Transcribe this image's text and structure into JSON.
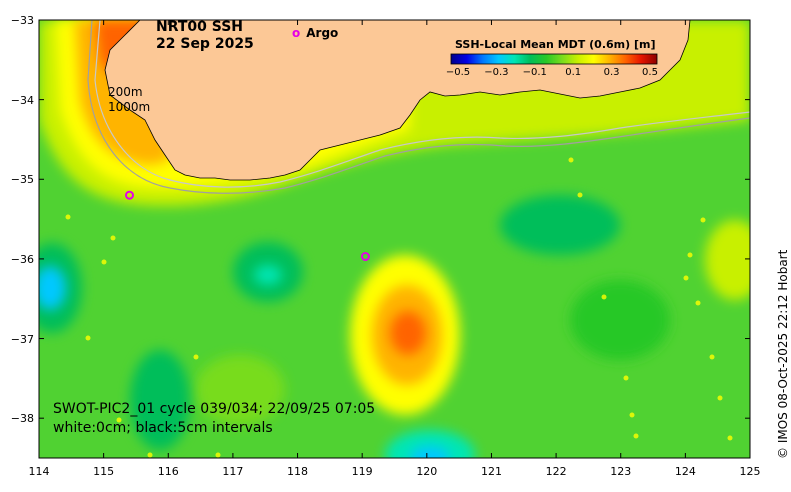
{
  "title": {
    "line1": "NRT00 SSH",
    "line2": "22 Sep 2025"
  },
  "legend": {
    "argo_symbol": "o",
    "argo_label": "Argo"
  },
  "isobaths": {
    "shallow": "200m",
    "deep": "1000m"
  },
  "colorbar": {
    "title": "SSH-Local Mean MDT (0.6m) [m]",
    "ticks": [
      "−0.5",
      "−0.3",
      "−0.1",
      "0.1",
      "0.3",
      "0.5"
    ],
    "values": [
      -0.5,
      -0.3,
      -0.1,
      0.1,
      0.3,
      0.5
    ],
    "colors": [
      "#00008c",
      "#0000e6",
      "#0078ff",
      "#00c8ff",
      "#00e6b4",
      "#00be5a",
      "#28c828",
      "#78dc1e",
      "#c8f000",
      "#ffff00",
      "#ffb400",
      "#ff6400",
      "#e61400",
      "#8c0000"
    ]
  },
  "axes": {
    "x_ticks": [
      "114",
      "115",
      "116",
      "117",
      "118",
      "119",
      "120",
      "121",
      "122",
      "123",
      "124",
      "125"
    ],
    "x_values": [
      114,
      115,
      116,
      117,
      118,
      119,
      120,
      121,
      122,
      123,
      124,
      125
    ],
    "y_ticks": [
      "−33",
      "−34",
      "−35",
      "−36",
      "−37",
      "−38"
    ],
    "y_values": [
      -33,
      -34,
      -35,
      -36,
      -37,
      -38
    ],
    "lon_range": [
      114,
      125
    ],
    "lat_range": [
      -38.5,
      -33
    ]
  },
  "argo_floats": [
    {
      "lon": 115.4,
      "lat": -35.2
    },
    {
      "lon": 119.05,
      "lat": -35.97
    }
  ],
  "features": [
    {
      "lon": 115.8,
      "lat": -33.3,
      "value": 0.5
    },
    {
      "lon": 115.8,
      "lat": -34.5,
      "value": 0.25
    },
    {
      "lon": 119.7,
      "lat": -36.9,
      "value": 0.35
    },
    {
      "lon": 114.3,
      "lat": -36.3,
      "value": -0.3
    },
    {
      "lon": 117.6,
      "lat": -36.2,
      "value": -0.2
    },
    {
      "lon": 120.3,
      "lat": -38.4,
      "value": -0.3
    },
    {
      "lon": 121.6,
      "lat": -35.5,
      "value": -0.1
    }
  ],
  "bottom_text": {
    "line1": "SWOT-PIC2_01 cycle 039/034; 22/09/25 07:05",
    "line2": "white:0cm; black:5cm intervals"
  },
  "credit": "© IMOS 08-Oct-2025 22:12 Hobart",
  "land_color": "#fcc896",
  "ocean_color": "#50d232",
  "argo_color": "#e600e6"
}
